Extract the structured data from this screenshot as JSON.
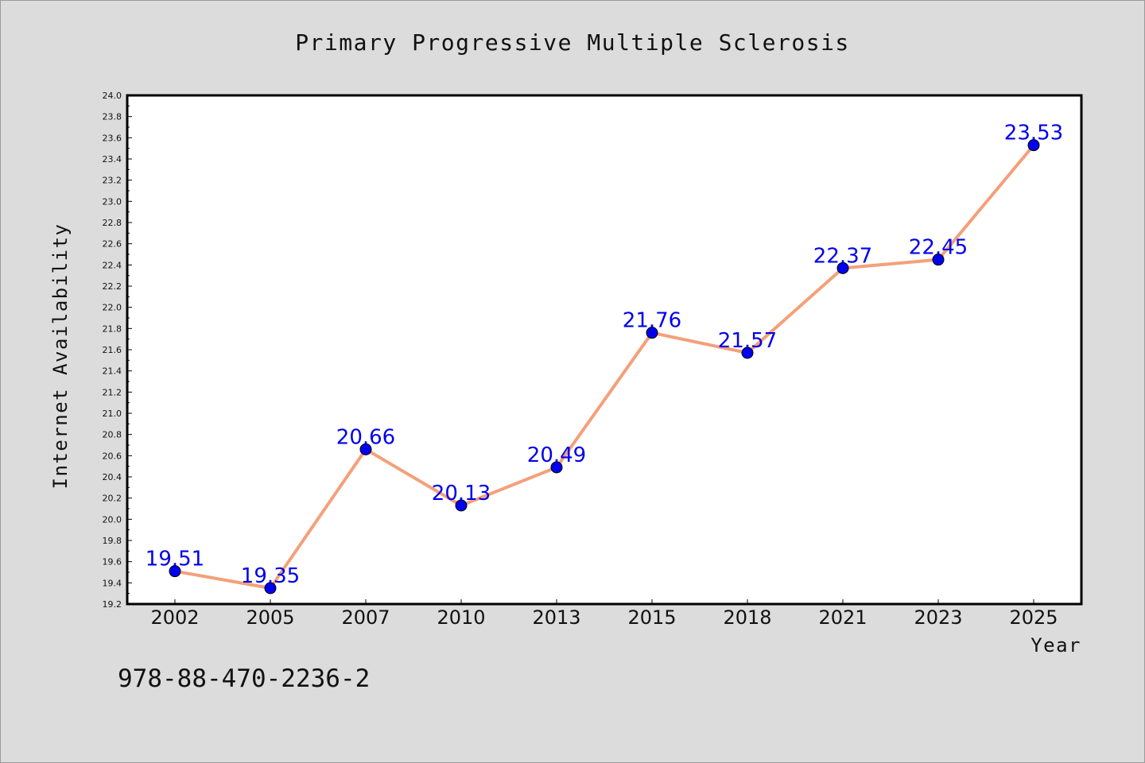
{
  "chart_data": {
    "type": "line",
    "title": "Primary Progressive Multiple Sclerosis",
    "xlabel": "Year",
    "ylabel": "Internet Availability",
    "categories": [
      "2002",
      "2005",
      "2007",
      "2010",
      "2013",
      "2015",
      "2018",
      "2021",
      "2023",
      "2025"
    ],
    "series": [
      {
        "values": [
          19.51,
          19.35,
          20.66,
          20.13,
          20.49,
          21.76,
          21.57,
          22.37,
          22.45,
          23.53
        ]
      }
    ],
    "ylim": [
      19.2,
      24.0
    ],
    "yticks": [
      "19.2",
      "19.4",
      "19.6",
      "19.8",
      "20.0",
      "20.2",
      "20.4",
      "20.6",
      "20.8",
      "21.0",
      "21.2",
      "21.4",
      "21.6",
      "21.8",
      "22.0",
      "22.2",
      "22.4",
      "22.6",
      "22.8",
      "23.0",
      "23.2",
      "23.4",
      "23.6",
      "23.8",
      "24.0"
    ],
    "grid": false,
    "line_color": "#f4a07a",
    "marker_color": "#0000ee",
    "label_color": "#0000ee",
    "footer_text": "978-88-470-2236-2"
  }
}
